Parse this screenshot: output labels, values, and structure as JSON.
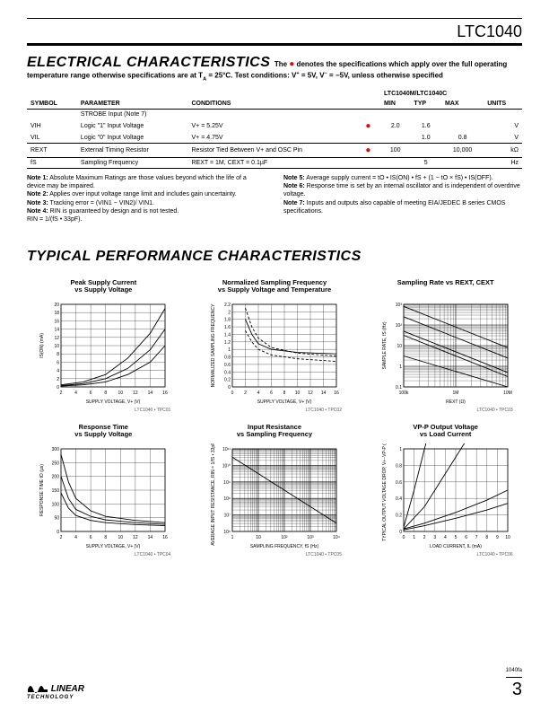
{
  "part_number": "LTC1040",
  "section1_title": "ELECTRICAL CHARACTERISTICS",
  "section1_sub": "The ● denotes the specifications which apply over the full operating",
  "section1_sub2": "temperature range otherwise specifications are at TA = 25°C. Test conditions: V+ = 5V, V− = −5V, unless otherwise specified",
  "table": {
    "group_header": "LTC1040M/LTC1040C",
    "headers": [
      "SYMBOL",
      "PARAMETER",
      "CONDITIONS",
      "",
      "MIN",
      "TYP",
      "MAX",
      "UNITS"
    ],
    "rows": [
      {
        "cells": [
          "",
          "STROBE Input (Note 7)",
          "",
          "",
          "",
          "",
          "",
          ""
        ],
        "line": true
      },
      {
        "cells": [
          "VIH",
          "Logic \"1\" Input Voltage",
          "V+ = 5.25V",
          "●",
          "2.0",
          "1.6",
          "",
          "V"
        ],
        "line": false
      },
      {
        "cells": [
          "VIL",
          "Logic \"0\" Input Voltage",
          "V+ = 4.75V",
          "",
          "",
          "1.0",
          "0.8",
          "V"
        ],
        "line": false
      },
      {
        "cells": [
          "REXT",
          "External Timing Resistor",
          "Resistor Tied Between V+ and OSC Pin",
          "●",
          "100",
          "",
          "10,000",
          "kΩ"
        ],
        "line": true
      },
      {
        "cells": [
          "fS",
          "Sampling Frequency",
          "REXT = 1M, CEXT = 0.1µF",
          "",
          "",
          "5",
          "",
          "Hz"
        ],
        "line": true
      }
    ]
  },
  "notes_left": [
    {
      "label": "Note 1:",
      "text": "Absolute Maximum Ratings are those values beyond which the life of a device may be impaired."
    },
    {
      "label": "Note 2:",
      "text": "Applies over input voltage range limit and includes gain uncertainty."
    },
    {
      "label": "Note 3:",
      "text": "Tracking error = (VIN1 − VIN2)/ VIN1."
    },
    {
      "label": "Note 4:",
      "text": "RIN is guaranteed by design and is not tested."
    },
    {
      "label": "",
      "text": "RIN = 1/(fS • 33pF)."
    }
  ],
  "notes_right": [
    {
      "label": "Note 5:",
      "text": "Average supply current = tO • IS(ON) • fS + (1 − tO × fS) • IS(OFF)."
    },
    {
      "label": "Note 6:",
      "text": "Response time is set by an internal oscillator and is independent of overdrive voltage."
    },
    {
      "label": "Note 7:",
      "text": "Inputs and outputs also capable of meeting EIA/JEDEC B series CMOS specifications."
    }
  ],
  "section2_title": "TYPICAL PERFORMANCE CHARACTERISTICS",
  "charts": [
    {
      "title": "Peak Supply Current\nvs Supply Voltage",
      "xlabel": "SUPPLY VOLTAGE, V+ (V)",
      "ylabel": "IS(ON) (mA)",
      "xlim": [
        2,
        16
      ],
      "ylim": [
        0,
        20
      ],
      "xticks": [
        2,
        4,
        6,
        8,
        10,
        12,
        14,
        16
      ],
      "yticks": [
        0,
        2,
        4,
        6,
        8,
        10,
        12,
        14,
        16,
        18,
        20
      ],
      "type": "line-linear",
      "series": [
        {
          "label": "−55°C",
          "points": [
            [
              2,
              0.5
            ],
            [
              5,
              1.2
            ],
            [
              8,
              3
            ],
            [
              11,
              7
            ],
            [
              14,
              13
            ],
            [
              16,
              19
            ]
          ]
        },
        {
          "label": "25°C",
          "points": [
            [
              2,
              0.3
            ],
            [
              5,
              0.8
            ],
            [
              8,
              2
            ],
            [
              11,
              4.5
            ],
            [
              14,
              9
            ],
            [
              16,
              14
            ]
          ]
        },
        {
          "label": "125°C",
          "points": [
            [
              2,
              0.2
            ],
            [
              5,
              0.5
            ],
            [
              8,
              1.2
            ],
            [
              11,
              3
            ],
            [
              14,
              6
            ],
            [
              16,
              10
            ]
          ]
        }
      ],
      "refcode": "LTC1040 • TPC01"
    },
    {
      "title": "Normalized Sampling Frequency\nvs Supply Voltage and Temperature",
      "xlabel": "SUPPLY VOLTAGE, V+ (V)",
      "ylabel": "NORMALIZED SAMPLING FREQUENCY\n(fS)T/(fS AT 5V, 25°C)",
      "xlim": [
        0,
        16
      ],
      "ylim": [
        0,
        2.2
      ],
      "xticks": [
        0,
        2,
        4,
        6,
        8,
        10,
        12,
        14,
        16
      ],
      "yticks": [
        0,
        0.2,
        0.4,
        0.6,
        0.8,
        1.0,
        1.2,
        1.4,
        1.6,
        1.8,
        2.0,
        2.2
      ],
      "type": "line-linear",
      "annotations": [
        "R = 1M",
        "C = 0.1µF",
        "TA = 125°C",
        "TA = 25°C",
        "TA = −55°C"
      ],
      "series": [
        {
          "points": [
            [
              2,
              2.1
            ],
            [
              3,
              1.6
            ],
            [
              4,
              1.3
            ],
            [
              6,
              1.05
            ],
            [
              10,
              0.9
            ],
            [
              16,
              0.82
            ]
          ],
          "dash": true
        },
        {
          "points": [
            [
              2,
              1.8
            ],
            [
              3,
              1.4
            ],
            [
              4,
              1.15
            ],
            [
              6,
              1.0
            ],
            [
              10,
              0.92
            ],
            [
              16,
              0.88
            ]
          ]
        },
        {
          "points": [
            [
              2,
              1.5
            ],
            [
              3,
              1.2
            ],
            [
              4,
              1.0
            ],
            [
              6,
              0.85
            ],
            [
              10,
              0.75
            ],
            [
              16,
              0.68
            ]
          ],
          "dash": true
        }
      ],
      "refcode": "LTC1040 • TPC02"
    },
    {
      "title": "Sampling Rate vs REXT, CEXT",
      "xlabel": "REXT (Ω)",
      "ylabel": "SAMPLE RATE, fS (Hz)",
      "xlim": [
        5,
        7
      ],
      "ylim": [
        -1,
        3
      ],
      "xticks_labels": [
        "100k",
        "1M",
        "10M"
      ],
      "yticks_labels": [
        "0.1",
        "1",
        "10",
        "10²",
        "10³"
      ],
      "type": "line-loglog",
      "annotations": [
        "CEXT = 1000pF",
        "CEXT = 0.01µF",
        "CEXT = 0.068µF",
        "CEXT = 0.1µF",
        "CEXT = 1µF"
      ],
      "series": [
        {
          "points": [
            [
              5,
              2.9
            ],
            [
              7,
              0.9
            ]
          ]
        },
        {
          "points": [
            [
              5,
              2.4
            ],
            [
              7,
              0.4
            ]
          ]
        },
        {
          "points": [
            [
              5,
              1.7
            ],
            [
              7,
              -0.3
            ]
          ]
        },
        {
          "points": [
            [
              5,
              1.5
            ],
            [
              7,
              -0.5
            ]
          ]
        },
        {
          "points": [
            [
              5,
              0.5
            ],
            [
              7,
              -1.0
            ]
          ]
        }
      ],
      "refcode": "LTC1040 • TPC03"
    },
    {
      "title": "Response Time\nvs Supply Voltage",
      "xlabel": "SUPPLY VOLTAGE, V+ (V)",
      "ylabel": "RESPONSE TIME tO (µs)",
      "xlim": [
        2,
        16
      ],
      "ylim": [
        0,
        300
      ],
      "xticks": [
        2,
        4,
        6,
        8,
        10,
        12,
        14,
        16
      ],
      "yticks": [
        0,
        50,
        100,
        150,
        200,
        250,
        300
      ],
      "type": "line-linear",
      "series": [
        {
          "points": [
            [
              2,
              280
            ],
            [
              3,
              180
            ],
            [
              4,
              120
            ],
            [
              6,
              75
            ],
            [
              8,
              55
            ],
            [
              12,
              40
            ],
            [
              16,
              32
            ]
          ]
        },
        {
          "points": [
            [
              2,
              200
            ],
            [
              3,
              120
            ],
            [
              4,
              80
            ],
            [
              6,
              55
            ],
            [
              8,
              42
            ],
            [
              12,
              32
            ],
            [
              16,
              26
            ]
          ]
        },
        {
          "points": [
            [
              2,
              140
            ],
            [
              3,
              85
            ],
            [
              4,
              58
            ],
            [
              6,
              40
            ],
            [
              8,
              32
            ],
            [
              12,
              25
            ],
            [
              16,
              21
            ]
          ]
        }
      ],
      "refcode": "LTC1040 • TPC04"
    },
    {
      "title": "Input Resistance\nvs Sampling Frequency",
      "xlabel": "SAMPLING FREQUENCY, fS (Hz)",
      "ylabel": "AVERAGE INPUT RESISTANCE, RIN = 1/fS • 33pF (Ω)",
      "xlim": [
        0,
        4
      ],
      "ylim": [
        6,
        11
      ],
      "xticks_labels": [
        "1",
        "10",
        "10²",
        "10³",
        "10⁴"
      ],
      "yticks_labels": [
        "10⁶",
        "10⁷",
        "10⁸",
        "10⁹",
        "10¹⁰",
        "10¹¹"
      ],
      "type": "line-loglog",
      "series": [
        {
          "points": [
            [
              0,
              10.5
            ],
            [
              4,
              6.5
            ]
          ]
        }
      ],
      "refcode": "LTC1040 • TPC05"
    },
    {
      "title": "VP-P Output Voltage\nvs Load Current",
      "xlabel": "LOAD CURRENT, IL (mA)",
      "ylabel": "TYPICAL OUTPUT VOLTAGE DROP, V+−VP-P (V)",
      "xlim": [
        0,
        10
      ],
      "ylim_top": [
        0,
        0.6
      ],
      "ylim_bot": [
        0.6,
        2.0
      ],
      "xticks": [
        0,
        1,
        2,
        3,
        4,
        5,
        6,
        7,
        8,
        9,
        10
      ],
      "yticks": [
        0,
        0.2,
        0.4,
        0.6,
        0.8,
        1.0,
        1.2,
        1.4,
        1.6,
        1.8,
        2.0
      ],
      "type": "line-split",
      "annotations": [
        "V+ = 10V",
        "V+ = 16V",
        "V+ = 2.5V",
        "V+ = 5V"
      ],
      "series": [
        {
          "points": [
            [
              0,
              0.02
            ],
            [
              2,
              0.07
            ],
            [
              5,
              0.16
            ],
            [
              8,
              0.26
            ],
            [
              10,
              0.34
            ]
          ]
        },
        {
          "points": [
            [
              0,
              0.03
            ],
            [
              2,
              0.1
            ],
            [
              5,
              0.23
            ],
            [
              8,
              0.38
            ],
            [
              10,
              0.5
            ]
          ]
        },
        {
          "points": [
            [
              0,
              0.05
            ],
            [
              1,
              0.5
            ],
            [
              2,
              1.0
            ],
            [
              3,
              1.5
            ],
            [
              3.7,
              2.0
            ]
          ]
        },
        {
          "points": [
            [
              0,
              0.03
            ],
            [
              2,
              0.3
            ],
            [
              4,
              0.7
            ],
            [
              6,
              1.1
            ],
            [
              8,
              1.6
            ],
            [
              9.5,
              2.0
            ]
          ]
        }
      ],
      "refcode": "LTC1040 • TPC06"
    }
  ],
  "footer_code": "1040fa",
  "page_number": "3",
  "logo_top": "LINEAR",
  "logo_bot": "TECHNOLOGY",
  "colors": {
    "red": "#e30613",
    "line": "#000000",
    "grid": "#000000"
  }
}
